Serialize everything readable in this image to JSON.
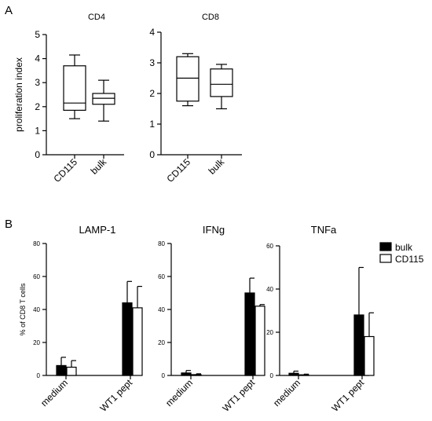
{
  "panels": {
    "a_label": "A",
    "b_label": "B"
  },
  "legend": [
    {
      "name": "bulk",
      "fill": "#000000"
    },
    {
      "name": "CD115",
      "fill": "#ffffff"
    }
  ],
  "chart_data": [
    {
      "id": "cd4",
      "type": "box",
      "title": "CD4",
      "ylabel": "proliferation index",
      "ylim": [
        0,
        5
      ],
      "yticks": [
        0,
        1,
        2,
        3,
        4,
        5
      ],
      "categories": [
        "CD115",
        "bulk"
      ],
      "boxes": [
        {
          "category": "CD115",
          "min": 1.5,
          "q1": 1.85,
          "median": 2.15,
          "q3": 3.7,
          "max": 4.15
        },
        {
          "category": "bulk",
          "min": 1.4,
          "q1": 2.1,
          "median": 2.35,
          "q3": 2.55,
          "max": 3.1
        }
      ]
    },
    {
      "id": "cd8",
      "type": "box",
      "title": "CD8",
      "ylabel": "",
      "ylim": [
        0,
        4
      ],
      "yticks": [
        0,
        1,
        2,
        3,
        4
      ],
      "categories": [
        "CD115",
        "bulk"
      ],
      "boxes": [
        {
          "category": "CD115",
          "min": 1.6,
          "q1": 1.75,
          "median": 2.5,
          "q3": 3.2,
          "max": 3.3
        },
        {
          "category": "bulk",
          "min": 1.5,
          "q1": 1.9,
          "median": 2.3,
          "q3": 2.8,
          "max": 2.95
        }
      ]
    },
    {
      "id": "lamp1",
      "type": "bar",
      "title": "LAMP-1",
      "ylabel": "% of CD8 T cells",
      "ylim": [
        0,
        80
      ],
      "yticks": [
        0,
        20,
        40,
        60,
        80
      ],
      "categories": [
        "medium",
        "WT1 pept"
      ],
      "series": [
        {
          "name": "bulk",
          "values": [
            6,
            44
          ],
          "errors": [
            5,
            13
          ]
        },
        {
          "name": "CD115",
          "values": [
            5,
            41
          ],
          "errors": [
            4,
            13
          ]
        }
      ]
    },
    {
      "id": "ifng",
      "type": "bar",
      "title": "IFNg",
      "ylabel": "",
      "ylim": [
        0,
        80
      ],
      "yticks": [
        0,
        20,
        40,
        60,
        80
      ],
      "categories": [
        "medium",
        "WT1 pept"
      ],
      "series": [
        {
          "name": "bulk",
          "values": [
            1.5,
            50
          ],
          "errors": [
            1.5,
            9
          ]
        },
        {
          "name": "CD115",
          "values": [
            0.5,
            42
          ],
          "errors": [
            0.5,
            1
          ]
        }
      ]
    },
    {
      "id": "tnfa",
      "type": "bar",
      "title": "TNFa",
      "ylabel": "",
      "ylim": [
        0,
        60
      ],
      "yticks": [
        0,
        20,
        40,
        60
      ],
      "categories": [
        "medium",
        "WT1 pept"
      ],
      "series": [
        {
          "name": "bulk",
          "values": [
            1,
            28
          ],
          "errors": [
            1,
            22
          ]
        },
        {
          "name": "CD115",
          "values": [
            0.3,
            18
          ],
          "errors": [
            0.3,
            11
          ]
        }
      ]
    }
  ]
}
